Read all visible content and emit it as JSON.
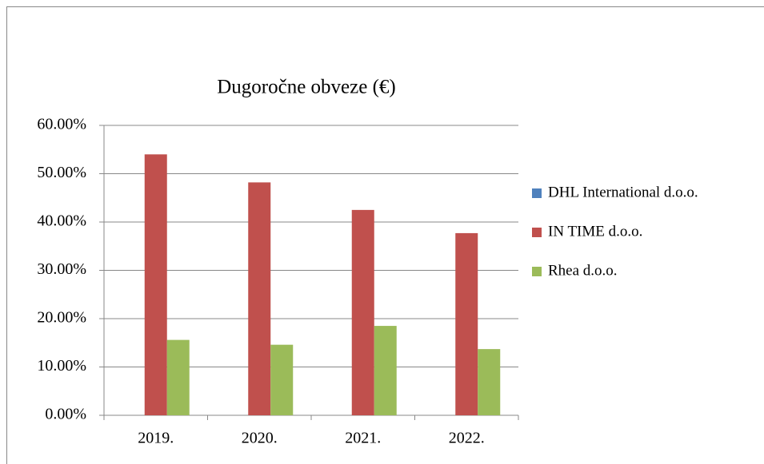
{
  "chart_data": {
    "type": "bar",
    "title": "Dugoročne obveze (€)",
    "categories": [
      "2019.",
      "2020.",
      "2021.",
      "2022."
    ],
    "series": [
      {
        "name": "DHL International d.o.o.",
        "color": "#4f81bd",
        "values": [
          0,
          0,
          0,
          0
        ]
      },
      {
        "name": "IN TIME d.o.o.",
        "color": "#c0504d",
        "values": [
          54,
          48.2,
          42.5,
          37.7
        ]
      },
      {
        "name": "Rhea d.o.o.",
        "color": "#9bbb59",
        "values": [
          15.6,
          14.6,
          18.5,
          13.7
        ]
      }
    ],
    "ylim": [
      0,
      60
    ],
    "yticks": [
      {
        "value": 0,
        "label": "0.00%"
      },
      {
        "value": 10,
        "label": "10.00%"
      },
      {
        "value": 20,
        "label": "20.00%"
      },
      {
        "value": 30,
        "label": "30.00%"
      },
      {
        "value": 40,
        "label": "40.00%"
      },
      {
        "value": 50,
        "label": "50.00%"
      },
      {
        "value": 60,
        "label": "60.00%"
      }
    ],
    "grid": true,
    "legend": "right"
  }
}
